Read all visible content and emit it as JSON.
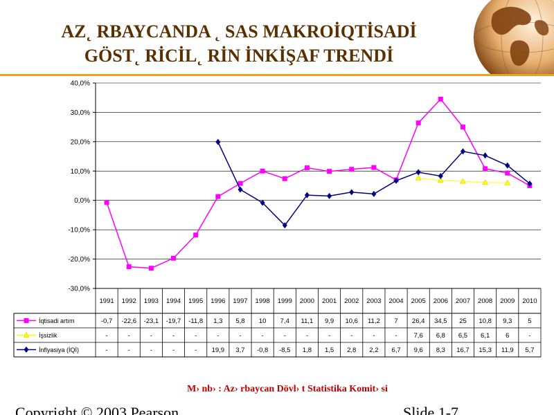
{
  "slide": {
    "title_line1": "AZ˛ RBAYCANDA ˛ SAS MAKROİQTİSADİ",
    "title_line2": "GÖST˛ RİCİL˛ RİN İNKİŞAF TRENDİ",
    "source": "M› nb› : Az› rbaycan Dövl› t Statistika Komit› si",
    "footer_left": "Copyright © 2003 Pearson",
    "footer_right": "Slide 1-7"
  },
  "colors": {
    "title": "#5a3000",
    "accent_rule": "#f0a020",
    "source_text": "#c00000",
    "series_growth": "#ff00ff",
    "series_unemployment": "#ffff00",
    "series_inflation": "#000080"
  },
  "chart_data": {
    "type": "line",
    "title": "",
    "xlabel": "",
    "ylabel": "",
    "ylim": [
      -30,
      40
    ],
    "y_ticks": [
      "40,0%",
      "30,0%",
      "20,0%",
      "10,0%",
      "0,0%",
      "-10,0%",
      "-20,0%",
      "-30,0%"
    ],
    "grid": "horizontal",
    "legend": "data-table-left",
    "categories": [
      "1991",
      "1992",
      "1993",
      "1994",
      "1995",
      "1996",
      "1997",
      "1998",
      "1999",
      "2000",
      "2001",
      "2002",
      "2003",
      "2004",
      "2005",
      "2006",
      "2007",
      "2008",
      "2009",
      "2010"
    ],
    "series": [
      {
        "name": "İqtisadi artım",
        "values": [
          -0.7,
          -22.6,
          -23.1,
          -19.7,
          -11.8,
          1.3,
          5.8,
          10,
          7.4,
          11.1,
          9.9,
          10.6,
          11.2,
          7,
          26.4,
          34.5,
          25,
          10.8,
          9.3,
          5
        ],
        "labels": [
          "-0,7",
          "-22,6",
          "-23,1",
          "-19,7",
          "-11,8",
          "1,3",
          "5,8",
          "10",
          "7,4",
          "11,1",
          "9,9",
          "10,6",
          "11,2",
          "7",
          "26,4",
          "34,5",
          "25",
          "10,8",
          "9,3",
          "5"
        ]
      },
      {
        "name": "İşsizlik",
        "values": [
          null,
          null,
          null,
          null,
          null,
          null,
          null,
          null,
          null,
          null,
          null,
          null,
          null,
          null,
          7.6,
          6.8,
          6.5,
          6.1,
          6,
          null
        ],
        "labels": [
          "-",
          "-",
          "-",
          "-",
          "-",
          "-",
          "-",
          "-",
          "-",
          "-",
          "-",
          "-",
          "-",
          "-",
          "7,6",
          "6,8",
          "6,5",
          "6,1",
          "6",
          "-"
        ]
      },
      {
        "name": "İnflyasiya (İQİ)",
        "values": [
          null,
          null,
          null,
          null,
          null,
          19.9,
          3.7,
          -0.8,
          -8.5,
          1.8,
          1.5,
          2.8,
          2.2,
          6.7,
          9.6,
          8.3,
          16.7,
          15.3,
          11.9,
          5.7
        ],
        "labels": [
          "-",
          "-",
          "-",
          "-",
          "-",
          "19,9",
          "3,7",
          "-0,8",
          "-8,5",
          "1,8",
          "1,5",
          "2,8",
          "2,2",
          "6,7",
          "9,6",
          "8,3",
          "16,7",
          "15,3",
          "11,9",
          "5,7"
        ]
      }
    ]
  }
}
